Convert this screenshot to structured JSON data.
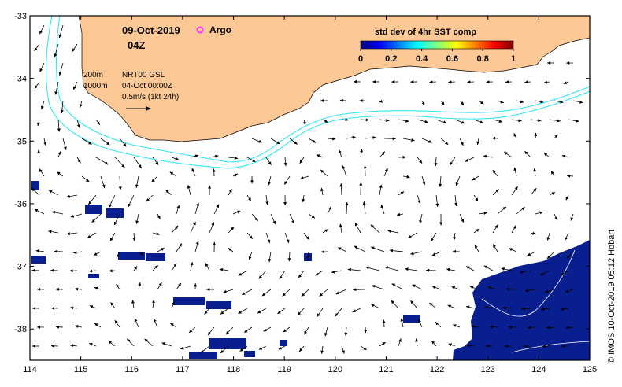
{
  "title": {
    "date": "09-Oct-2019",
    "time": "04Z"
  },
  "legend": {
    "argo_label": "Argo",
    "argo_color": "#ff33ff",
    "contour_200m": "200m",
    "contour_1000m": "1000m",
    "current_source": "NRT00 GSL",
    "current_date": "04-Oct 00:00Z",
    "scale_label": "0.5m/s (1kt 24h)"
  },
  "colorbar": {
    "title": "std dev of 4hr SST comp",
    "ticks": [
      "0",
      "0.2",
      "0.4",
      "0.6",
      "0.8",
      "1"
    ],
    "colors": [
      "#00007f",
      "#0000ff",
      "#007fff",
      "#00ffff",
      "#7fff7f",
      "#ffff00",
      "#ff7f00",
      "#ff0000",
      "#7f0000"
    ]
  },
  "axes": {
    "x_ticks": [
      "114",
      "115",
      "116",
      "117",
      "118",
      "119",
      "120",
      "121",
      "122",
      "123",
      "124",
      "125"
    ],
    "y_ticks": [
      "-33",
      "-34",
      "-35",
      "-36",
      "-37",
      "-38"
    ],
    "x_range": [
      114,
      125
    ],
    "y_range": [
      -38.5,
      -33
    ]
  },
  "credit": "© IMOS 10-Oct-2019 05:12 Hobart",
  "colors": {
    "land": "#fbc896",
    "contour": "#33e6f0",
    "sst_patch": "#0a1f8f",
    "frame": "#000000"
  }
}
